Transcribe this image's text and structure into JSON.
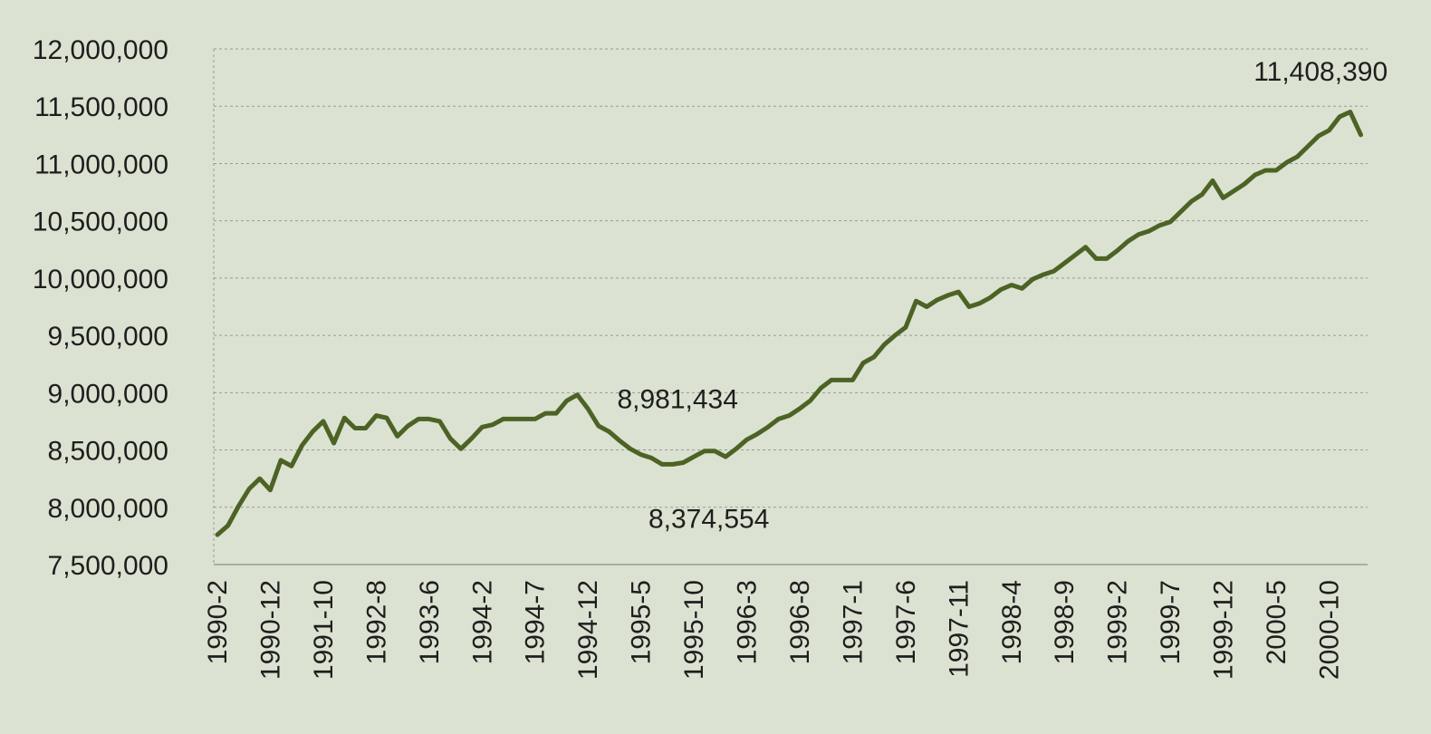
{
  "chart_data": {
    "type": "line",
    "title": "",
    "xlabel": "",
    "ylabel": "",
    "ylim": [
      7500000,
      12000000
    ],
    "yticks": [
      7500000,
      8000000,
      8500000,
      9000000,
      9500000,
      10000000,
      10500000,
      11000000,
      11500000,
      12000000
    ],
    "ytick_labels": [
      "7,500,000",
      "8,000,000",
      "8,500,000",
      "9,000,000",
      "9,500,000",
      "10,000,000",
      "10,500,000",
      "11,000,000",
      "11,500,000",
      "12,000,000"
    ],
    "grid": true,
    "legend": "none",
    "x_tick_labels": [
      "1990-2",
      "1990-12",
      "1991-10",
      "1992-8",
      "1993-6",
      "1994-2",
      "1994-7",
      "1994-12",
      "1995-5",
      "1995-10",
      "1996-3",
      "1996-8",
      "1997-1",
      "1997-6",
      "1997-11",
      "1998-4",
      "1998-9",
      "1999-2",
      "1999-7",
      "1999-12",
      "2000-5",
      "2000-10"
    ],
    "series": [
      {
        "color": "#4c6325",
        "values": [
          7760000,
          7840000,
          8010000,
          8160000,
          8250000,
          8150000,
          8410000,
          8360000,
          8540000,
          8660000,
          8750000,
          8560000,
          8780000,
          8690000,
          8690000,
          8800000,
          8780000,
          8620000,
          8710000,
          8770000,
          8770000,
          8750000,
          8600000,
          8510000,
          8600000,
          8700000,
          8720000,
          8770000,
          8770000,
          8770000,
          8770000,
          8820000,
          8820000,
          8930000,
          8981434,
          8860000,
          8710000,
          8660000,
          8580000,
          8510000,
          8460000,
          8430000,
          8374554,
          8374554,
          8390000,
          8440000,
          8490000,
          8490000,
          8440000,
          8510000,
          8590000,
          8640000,
          8700000,
          8770000,
          8800000,
          8860000,
          8930000,
          9040000,
          9110000,
          9110000,
          9110000,
          9260000,
          9310000,
          9420000,
          9500000,
          9570000,
          9800000,
          9750000,
          9810000,
          9850000,
          9880000,
          9750000,
          9780000,
          9830000,
          9900000,
          9940000,
          9910000,
          9990000,
          10030000,
          10060000,
          10130000,
          10200000,
          10270000,
          10170000,
          10170000,
          10240000,
          10320000,
          10380000,
          10410000,
          10460000,
          10490000,
          10580000,
          10670000,
          10730000,
          10850000,
          10700000,
          10760000,
          10820000,
          10900000,
          10940000,
          10940000,
          11010000,
          11060000,
          11150000,
          11240000,
          11290000,
          11408390,
          11450000,
          11250000
        ]
      }
    ],
    "annotations": [
      {
        "text": "8,981,434"
      },
      {
        "text": "8,374,554"
      },
      {
        "text": "11,408,390"
      }
    ]
  }
}
